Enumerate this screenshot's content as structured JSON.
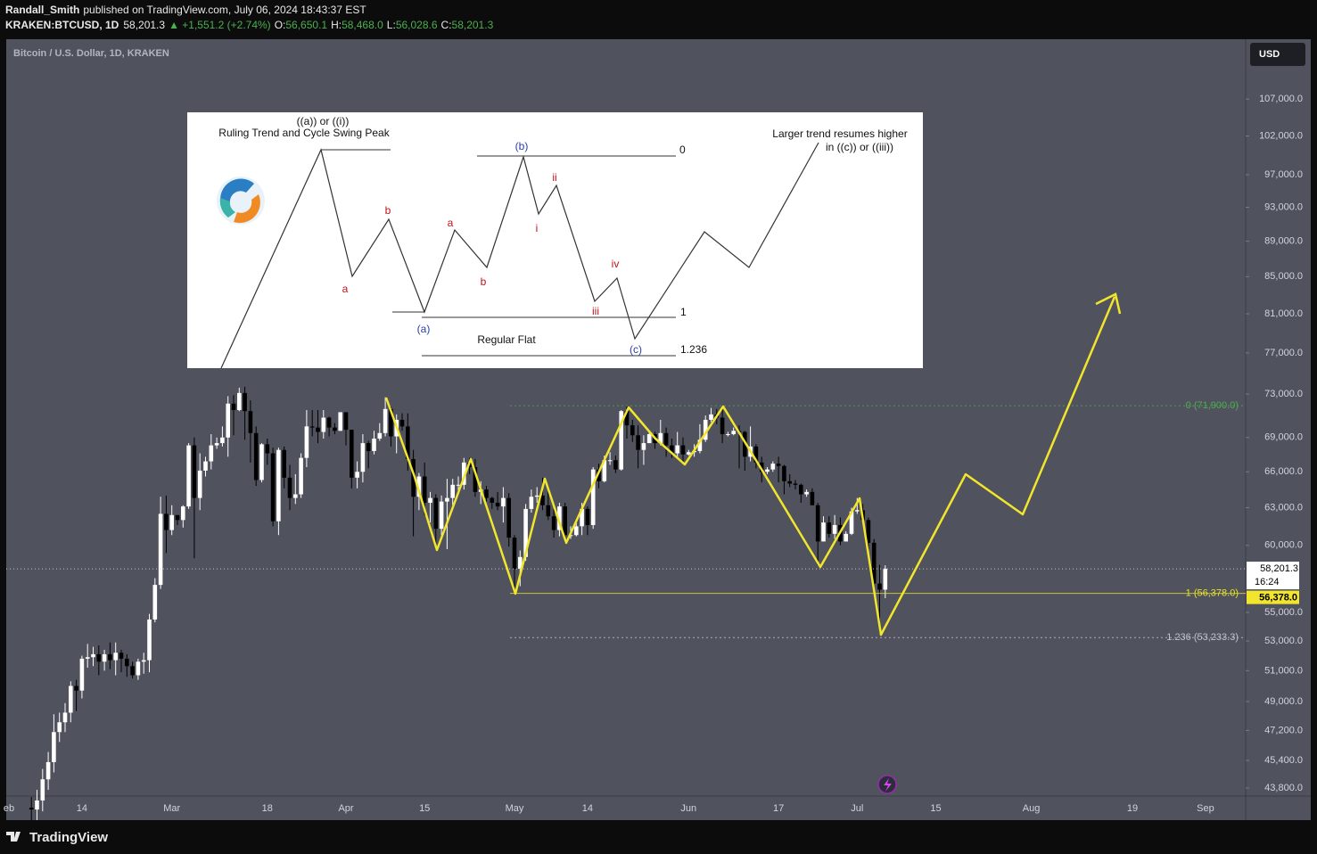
{
  "header": {
    "author": "Randall_Smith",
    "published": "published on TradingView.com, July 06, 2024 18:43:37 EST",
    "symbol": "KRAKEN:BTCUSD, 1D",
    "price": "58,201.3",
    "change": "▲ +1,551.2 (+2.74%)",
    "ohlc": [
      {
        "label": "O:",
        "value": "56,650.1"
      },
      {
        "label": "H:",
        "value": "58,468.0"
      },
      {
        "label": "L:",
        "value": "56,028.6"
      },
      {
        "label": "C:",
        "value": "58,201.3"
      }
    ]
  },
  "footer": {
    "brand": "TradingView"
  },
  "wave_diagram": {
    "labels": [
      "((a)) or ((i))",
      "Ruling Trend and Cycle Swing Peak",
      "(b)",
      "0",
      "Larger trend resumes higher",
      "in ((c)) or ((iii))",
      "b",
      "a",
      "a",
      "b",
      "ii",
      "i",
      "iv",
      "iii",
      "1",
      "(a)",
      "Regular Flat",
      "(c)",
      "1.236"
    ]
  },
  "chart_data": {
    "type": "candlestick",
    "title": "Bitcoin / U.S. Dollar, 1D, KRAKEN",
    "currency": "USD",
    "log_scale": true,
    "colors": {
      "up": "#ffffff",
      "down": "#000000"
    },
    "ylim": [
      43350,
      115500
    ],
    "yticks": [
      {
        "value": 43800,
        "label": "43,800.0"
      },
      {
        "value": 45400,
        "label": "45,400.0"
      },
      {
        "value": 47200,
        "label": "47,200.0"
      },
      {
        "value": 49000,
        "label": "49,000.0"
      },
      {
        "value": 51000,
        "label": "51,000.0"
      },
      {
        "value": 53000,
        "label": "53,000.0"
      },
      {
        "value": 55000,
        "label": "55,000.0"
      },
      {
        "value": 60000,
        "label": "60,000.0"
      },
      {
        "value": 63000,
        "label": "63,000.0"
      },
      {
        "value": 66000,
        "label": "66,000.0"
      },
      {
        "value": 69000,
        "label": "69,000.0"
      },
      {
        "value": 73000,
        "label": "73,000.0"
      },
      {
        "value": 77000,
        "label": "77,000.0"
      },
      {
        "value": 81000,
        "label": "81,000.0"
      },
      {
        "value": 85000,
        "label": "85,000.0"
      },
      {
        "value": 89000,
        "label": "89,000.0"
      },
      {
        "value": 93000,
        "label": "93,000.0"
      },
      {
        "value": 97000,
        "label": "97,000.0"
      },
      {
        "value": 102000,
        "label": "102,000.0"
      },
      {
        "value": 107000,
        "label": "107,000.0"
      }
    ],
    "current_price": {
      "value": 58201.3,
      "label": "58,201.3",
      "countdown": "16:24"
    },
    "fib_marker": {
      "value": 56378,
      "label": "56,378.0",
      "color": "#f2e52e"
    },
    "fib_levels": [
      {
        "value": 71900,
        "label": "0 (71,900.0)",
        "color": "#4caf50"
      },
      {
        "value": 56378,
        "label": "1 (56,378.0)",
        "color": "#e6e02c"
      },
      {
        "value": 53233.3,
        "label": "1.236 (53,233.3)",
        "color": "#c0c3cc"
      }
    ],
    "categories": [
      "eb",
      null,
      null,
      null,
      null,
      null,
      null,
      null,
      null,
      null,
      null,
      null,
      null,
      "14",
      null,
      null,
      null,
      null,
      null,
      null,
      null,
      null,
      null,
      null,
      null,
      null,
      null,
      null,
      null,
      "Mar",
      null,
      null,
      null,
      null,
      null,
      null,
      null,
      null,
      null,
      null,
      null,
      null,
      null,
      null,
      null,
      null,
      "18",
      null,
      null,
      null,
      null,
      null,
      null,
      null,
      null,
      null,
      null,
      null,
      null,
      null,
      "Apr",
      null,
      null,
      null,
      null,
      null,
      null,
      null,
      null,
      null,
      null,
      null,
      null,
      null,
      "15",
      null,
      null,
      null,
      null,
      null,
      null,
      null,
      null,
      null,
      null,
      null,
      null,
      null,
      null,
      null,
      "May",
      null,
      null,
      null,
      null,
      null,
      null,
      null,
      null,
      null,
      null,
      null,
      null,
      "14",
      null,
      null,
      null,
      null,
      null,
      null,
      null,
      null,
      null,
      null,
      null,
      null,
      null,
      null,
      null,
      null,
      null,
      "Jun",
      null,
      null,
      null,
      null,
      null,
      null,
      null,
      null,
      null,
      null,
      null,
      null,
      null,
      null,
      null,
      "17",
      null,
      null,
      null,
      null,
      null,
      null,
      null,
      null,
      null,
      null,
      null,
      null,
      null,
      "Jul",
      null,
      null,
      null,
      null,
      null,
      null,
      null,
      null,
      null,
      null,
      null,
      null,
      null,
      "15",
      null,
      null,
      null,
      null,
      null,
      null,
      null,
      null,
      null,
      null,
      null,
      null,
      null,
      null,
      null,
      null,
      "Aug",
      null,
      null,
      null,
      null,
      null,
      null,
      null,
      null,
      null,
      null,
      null,
      null,
      null,
      null,
      null,
      null,
      null,
      "19",
      null,
      null,
      null,
      null,
      null,
      null,
      null,
      null,
      null,
      null,
      null,
      null,
      "Sep"
    ],
    "open": [
      null,
      null,
      null,
      null,
      42700,
      42600,
      43100,
      44300,
      45300,
      47100,
      47700,
      48300,
      50000,
      49700,
      51800,
      51900,
      52100,
      51600,
      52100,
      51700,
      52200,
      51800,
      51300,
      50700,
      51600,
      51700,
      54500,
      57000,
      62500,
      61200,
      62400,
      62000,
      63100,
      68300,
      63800,
      66100,
      66900,
      68300,
      68500,
      69000,
      72100,
      71500,
      73100,
      71400,
      69400,
      65300,
      68400,
      67600,
      61900,
      67900,
      65500,
      63800,
      64100,
      67200,
      70000,
      69900,
      69500,
      70800,
      69900,
      69600,
      71300,
      69700,
      65500,
      66000,
      68500,
      67800,
      68900,
      69400,
      71600,
      69100,
      70600,
      70000,
      67100,
      63900,
      65600,
      63400,
      63800,
      61300,
      63500,
      63800,
      64900,
      64900,
      66800,
      66400,
      64300,
      64500,
      63800,
      63400,
      63100,
      63800,
      60600,
      58200,
      59100,
      62900,
      63900,
      64000,
      63200,
      62300,
      61200,
      63100,
      60800,
      60800,
      61500,
      62900,
      61600,
      66200,
      65200,
      67000,
      67000,
      66200,
      71400,
      70100,
      69200,
      67900,
      68500,
      69300,
      68500,
      69400,
      68300,
      67600,
      68300,
      67500,
      67700,
      67800,
      68800,
      70600,
      71100,
      70800,
      69300,
      69300,
      69600,
      69500,
      67300,
      68200,
      66800,
      66000,
      66200,
      66700,
      66500,
      65200,
      65000,
      64900,
      64100,
      64300,
      63200,
      60300,
      61800,
      60900,
      61600,
      60300,
      60900,
      62700,
      62800,
      62000,
      60200,
      57100,
      56650.1,
      null,
      null,
      null,
      null,
      null,
      null,
      null,
      null,
      null,
      null,
      null,
      null,
      null,
      null,
      null,
      null,
      null,
      null,
      null,
      null,
      null,
      null,
      null,
      null,
      null,
      null,
      null,
      null,
      null,
      null,
      null,
      null,
      null,
      null,
      null,
      null,
      null,
      null,
      null,
      null,
      null,
      null,
      null,
      null,
      null,
      null,
      null,
      null,
      null,
      null,
      null,
      null,
      null,
      null,
      null,
      null,
      null
    ],
    "high": [
      null,
      null,
      null,
      null,
      43300,
      43700,
      44900,
      45900,
      48200,
      48300,
      48900,
      50300,
      50400,
      52000,
      52800,
      52600,
      52700,
      52400,
      52900,
      52900,
      52400,
      52100,
      51600,
      51800,
      52200,
      54900,
      57500,
      63900,
      64000,
      63200,
      62400,
      63200,
      68500,
      69000,
      67600,
      67300,
      69300,
      69000,
      70000,
      72800,
      72900,
      73600,
      73700,
      72400,
      70000,
      68500,
      68900,
      68100,
      68100,
      68200,
      66600,
      65800,
      67600,
      71500,
      71500,
      71500,
      71500,
      70900,
      70300,
      71300,
      71300,
      69700,
      66900,
      69300,
      68700,
      69600,
      70300,
      72700,
      71800,
      71100,
      71200,
      71200,
      67900,
      65900,
      66800,
      64300,
      64100,
      64000,
      65400,
      65400,
      65600,
      67200,
      67200,
      67100,
      65200,
      64800,
      63900,
      64300,
      64700,
      64200,
      60800,
      59600,
      63300,
      64500,
      64700,
      65500,
      64400,
      62900,
      63400,
      63400,
      61500,
      61800,
      63400,
      63100,
      66400,
      66700,
      67400,
      67700,
      67400,
      71500,
      71900,
      70600,
      70100,
      69200,
      69500,
      69500,
      70600,
      69900,
      68900,
      69500,
      69000,
      67900,
      68400,
      70200,
      71000,
      71700,
      71600,
      71900,
      69500,
      69900,
      70100,
      69600,
      70000,
      68400,
      67300,
      66400,
      66900,
      67300,
      66600,
      65800,
      65300,
      65000,
      64500,
      64600,
      63400,
      62300,
      62300,
      62400,
      62200,
      61100,
      63000,
      63800,
      63300,
      62200,
      60500,
      58500,
      58468,
      null,
      null,
      null,
      null,
      null,
      null,
      null,
      null,
      null,
      null,
      null,
      null,
      null,
      null,
      null,
      null,
      null,
      null,
      null,
      null,
      null,
      null,
      null,
      null,
      null,
      null,
      null,
      null,
      null,
      null,
      null,
      null,
      null,
      null,
      null,
      null,
      null,
      null,
      null,
      null,
      null,
      null,
      null,
      null,
      null,
      null,
      null,
      null,
      null,
      null,
      null,
      null,
      null,
      null,
      null,
      null,
      null
    ],
    "low": [
      null,
      null,
      null,
      null,
      42000,
      42000,
      42500,
      43700,
      44700,
      46500,
      47100,
      47700,
      48400,
      49200,
      51200,
      51300,
      50700,
      51000,
      51100,
      50700,
      50900,
      50600,
      50500,
      50400,
      50800,
      50900,
      54300,
      56700,
      59400,
      60800,
      61600,
      61400,
      62900,
      59000,
      62800,
      65600,
      66200,
      68000,
      68200,
      67300,
      69200,
      71400,
      68800,
      66800,
      64800,
      65100,
      66600,
      61500,
      60800,
      64600,
      62800,
      63300,
      63800,
      66400,
      69100,
      68500,
      68900,
      69100,
      69300,
      69600,
      68300,
      64600,
      64600,
      65100,
      66300,
      67500,
      68700,
      69100,
      68200,
      67600,
      69600,
      66100,
      60700,
      62800,
      62400,
      61800,
      59700,
      60800,
      59700,
      63200,
      64300,
      64500,
      65800,
      63900,
      63300,
      63500,
      62900,
      62800,
      61800,
      59900,
      56600,
      56900,
      58800,
      62600,
      63400,
      62800,
      62000,
      60600,
      60700,
      60200,
      60500,
      60700,
      60800,
      60800,
      61300,
      64600,
      65100,
      66600,
      65900,
      66100,
      68900,
      68600,
      66300,
      66600,
      68500,
      68000,
      68300,
      67300,
      67200,
      67100,
      66700,
      67400,
      67300,
      67600,
      68600,
      70400,
      70200,
      68500,
      69100,
      69200,
      66300,
      66100,
      66900,
      66300,
      65100,
      65800,
      66000,
      65100,
      64100,
      64700,
      64500,
      63400,
      63900,
      63200,
      58500,
      60300,
      60600,
      60500,
      60000,
      60300,
      60800,
      62500,
      61800,
      59400,
      56800,
      53600,
      56028.6,
      null,
      null,
      null,
      null,
      null,
      null,
      null,
      null,
      null,
      null,
      null,
      null,
      null,
      null,
      null,
      null,
      null,
      null,
      null,
      null,
      null,
      null,
      null,
      null,
      null,
      null,
      null,
      null,
      null,
      null,
      null,
      null,
      null,
      null,
      null,
      null,
      null,
      null,
      null,
      null,
      null,
      null,
      null,
      null,
      null,
      null,
      null,
      null,
      null,
      null,
      null,
      null,
      null,
      null,
      null,
      null,
      null
    ],
    "close": [
      null,
      null,
      null,
      null,
      42600,
      43100,
      44300,
      45300,
      47100,
      47700,
      48300,
      50000,
      49700,
      51800,
      51900,
      52100,
      51600,
      52100,
      51700,
      52200,
      51800,
      51300,
      50700,
      51600,
      51700,
      54500,
      57000,
      62500,
      61200,
      62400,
      62000,
      63100,
      68300,
      63800,
      66100,
      66900,
      68300,
      68500,
      69000,
      72100,
      71500,
      73100,
      71400,
      69400,
      65300,
      68400,
      67600,
      61900,
      67900,
      65500,
      63800,
      64100,
      67200,
      70000,
      69900,
      69500,
      70800,
      69900,
      69600,
      71300,
      69700,
      65500,
      66000,
      68500,
      67800,
      68900,
      69400,
      71600,
      69100,
      70600,
      70000,
      67100,
      63900,
      65600,
      63400,
      63800,
      61300,
      63500,
      63800,
      64900,
      64900,
      66800,
      66400,
      64300,
      64500,
      63800,
      63400,
      63100,
      63800,
      60600,
      58200,
      59100,
      62900,
      63900,
      64000,
      63200,
      62300,
      61200,
      63100,
      60800,
      60800,
      61500,
      62900,
      61600,
      66200,
      65200,
      67000,
      67000,
      66200,
      71400,
      70100,
      69200,
      67900,
      68500,
      69300,
      68500,
      69400,
      68300,
      67600,
      68300,
      67500,
      67700,
      67800,
      68800,
      70600,
      71100,
      70800,
      69300,
      69300,
      69600,
      69500,
      67300,
      68200,
      66800,
      66000,
      66200,
      66700,
      66500,
      65200,
      65000,
      64900,
      64100,
      64300,
      63200,
      60300,
      61800,
      60900,
      61600,
      60300,
      60900,
      62700,
      62800,
      62000,
      60200,
      57100,
      56650.1,
      58201.3,
      null,
      null,
      null,
      null,
      null,
      null,
      null,
      null,
      null,
      null,
      null,
      null,
      null,
      null,
      null,
      null,
      null,
      null,
      null,
      null,
      null,
      null,
      null,
      null,
      null,
      null,
      null,
      null,
      null,
      null,
      null,
      null,
      null,
      null,
      null,
      null,
      null,
      null,
      null,
      null,
      null,
      null,
      null,
      null,
      null,
      null,
      null,
      null,
      null,
      null,
      null,
      null,
      null,
      null,
      null,
      null,
      null
    ]
  }
}
